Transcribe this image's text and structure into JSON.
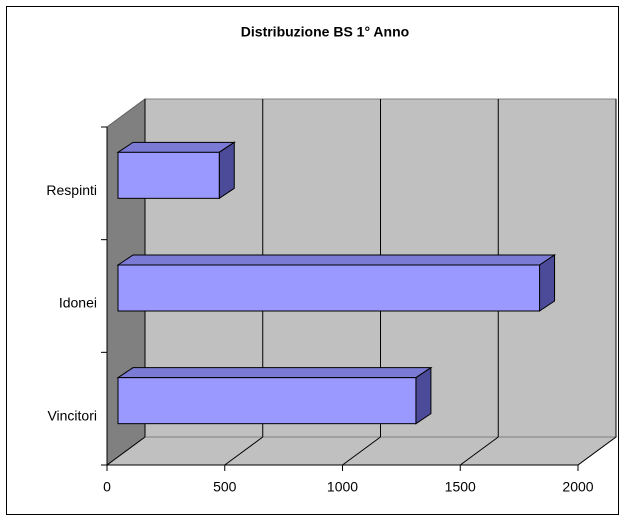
{
  "chart_data": {
    "type": "bar3d",
    "title": "Distribuzione BS 1° Anno",
    "categories": [
      "Vincitori",
      "Idonei",
      "Respinti"
    ],
    "values": [
      1265,
      1790,
      430
    ],
    "color": "#9999ff",
    "xlim": [
      0,
      2000
    ],
    "xticks": [
      0,
      500,
      1000,
      1500,
      2000
    ],
    "grid": true
  }
}
